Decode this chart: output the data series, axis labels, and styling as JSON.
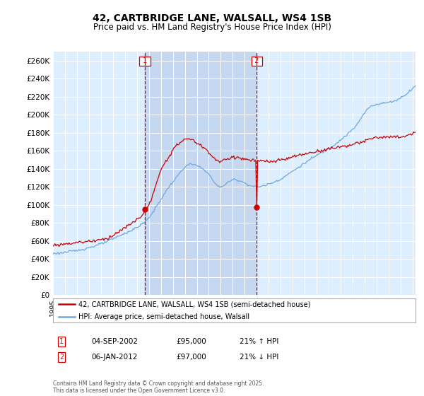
{
  "title": "42, CARTBRIDGE LANE, WALSALL, WS4 1SB",
  "subtitle": "Price paid vs. HM Land Registry's House Price Index (HPI)",
  "ylim": [
    0,
    270000
  ],
  "yticks": [
    0,
    20000,
    40000,
    60000,
    80000,
    100000,
    120000,
    140000,
    160000,
    180000,
    200000,
    220000,
    240000,
    260000
  ],
  "ytick_labels": [
    "£0",
    "£20K",
    "£40K",
    "£60K",
    "£80K",
    "£100K",
    "£120K",
    "£140K",
    "£160K",
    "£180K",
    "£200K",
    "£220K",
    "£240K",
    "£260K"
  ],
  "hpi_color": "#6fa8dc",
  "price_color": "#cc0000",
  "marker1_price": 95000,
  "marker2_price": 97000,
  "legend_line1": "42, CARTBRIDGE LANE, WALSALL, WS4 1SB (semi-detached house)",
  "legend_line2": "HPI: Average price, semi-detached house, Walsall",
  "footnote": "Contains HM Land Registry data © Crown copyright and database right 2025.\nThis data is licensed under the Open Government Licence v3.0.",
  "plot_bg_color": "#ddeeff",
  "grid_color": "#ffffff",
  "shade_color": "#c5d8f0",
  "title_fontsize": 10,
  "subtitle_fontsize": 8.5,
  "tick_fontsize": 7.5
}
